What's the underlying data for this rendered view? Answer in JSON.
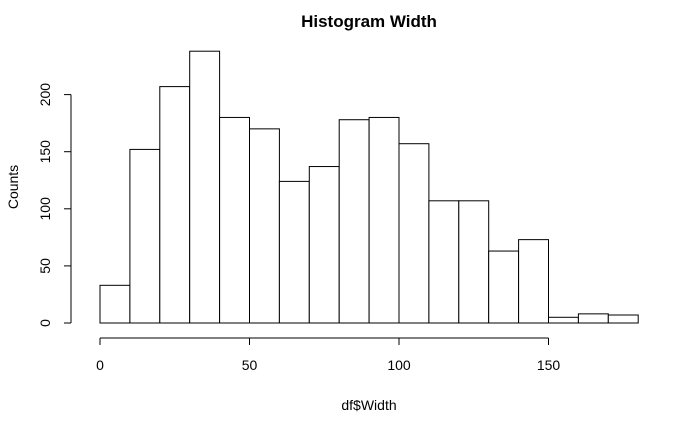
{
  "chart_data": {
    "type": "bar",
    "title": "Histogram Width",
    "xlabel": "df$Width",
    "ylabel": "Counts",
    "bin_edges": [
      0,
      10,
      20,
      30,
      40,
      50,
      60,
      70,
      80,
      90,
      100,
      110,
      120,
      130,
      140,
      150,
      160,
      170,
      180
    ],
    "values": [
      33,
      152,
      207,
      238,
      180,
      170,
      124,
      137,
      178,
      180,
      157,
      107,
      107,
      63,
      73,
      5,
      8,
      7
    ],
    "xlim": [
      0,
      180
    ],
    "ylim": [
      0,
      238
    ],
    "x_ticks": [
      0,
      50,
      100,
      150
    ],
    "y_ticks": [
      0,
      50,
      100,
      150,
      200
    ],
    "grid": false,
    "legend": "none"
  }
}
